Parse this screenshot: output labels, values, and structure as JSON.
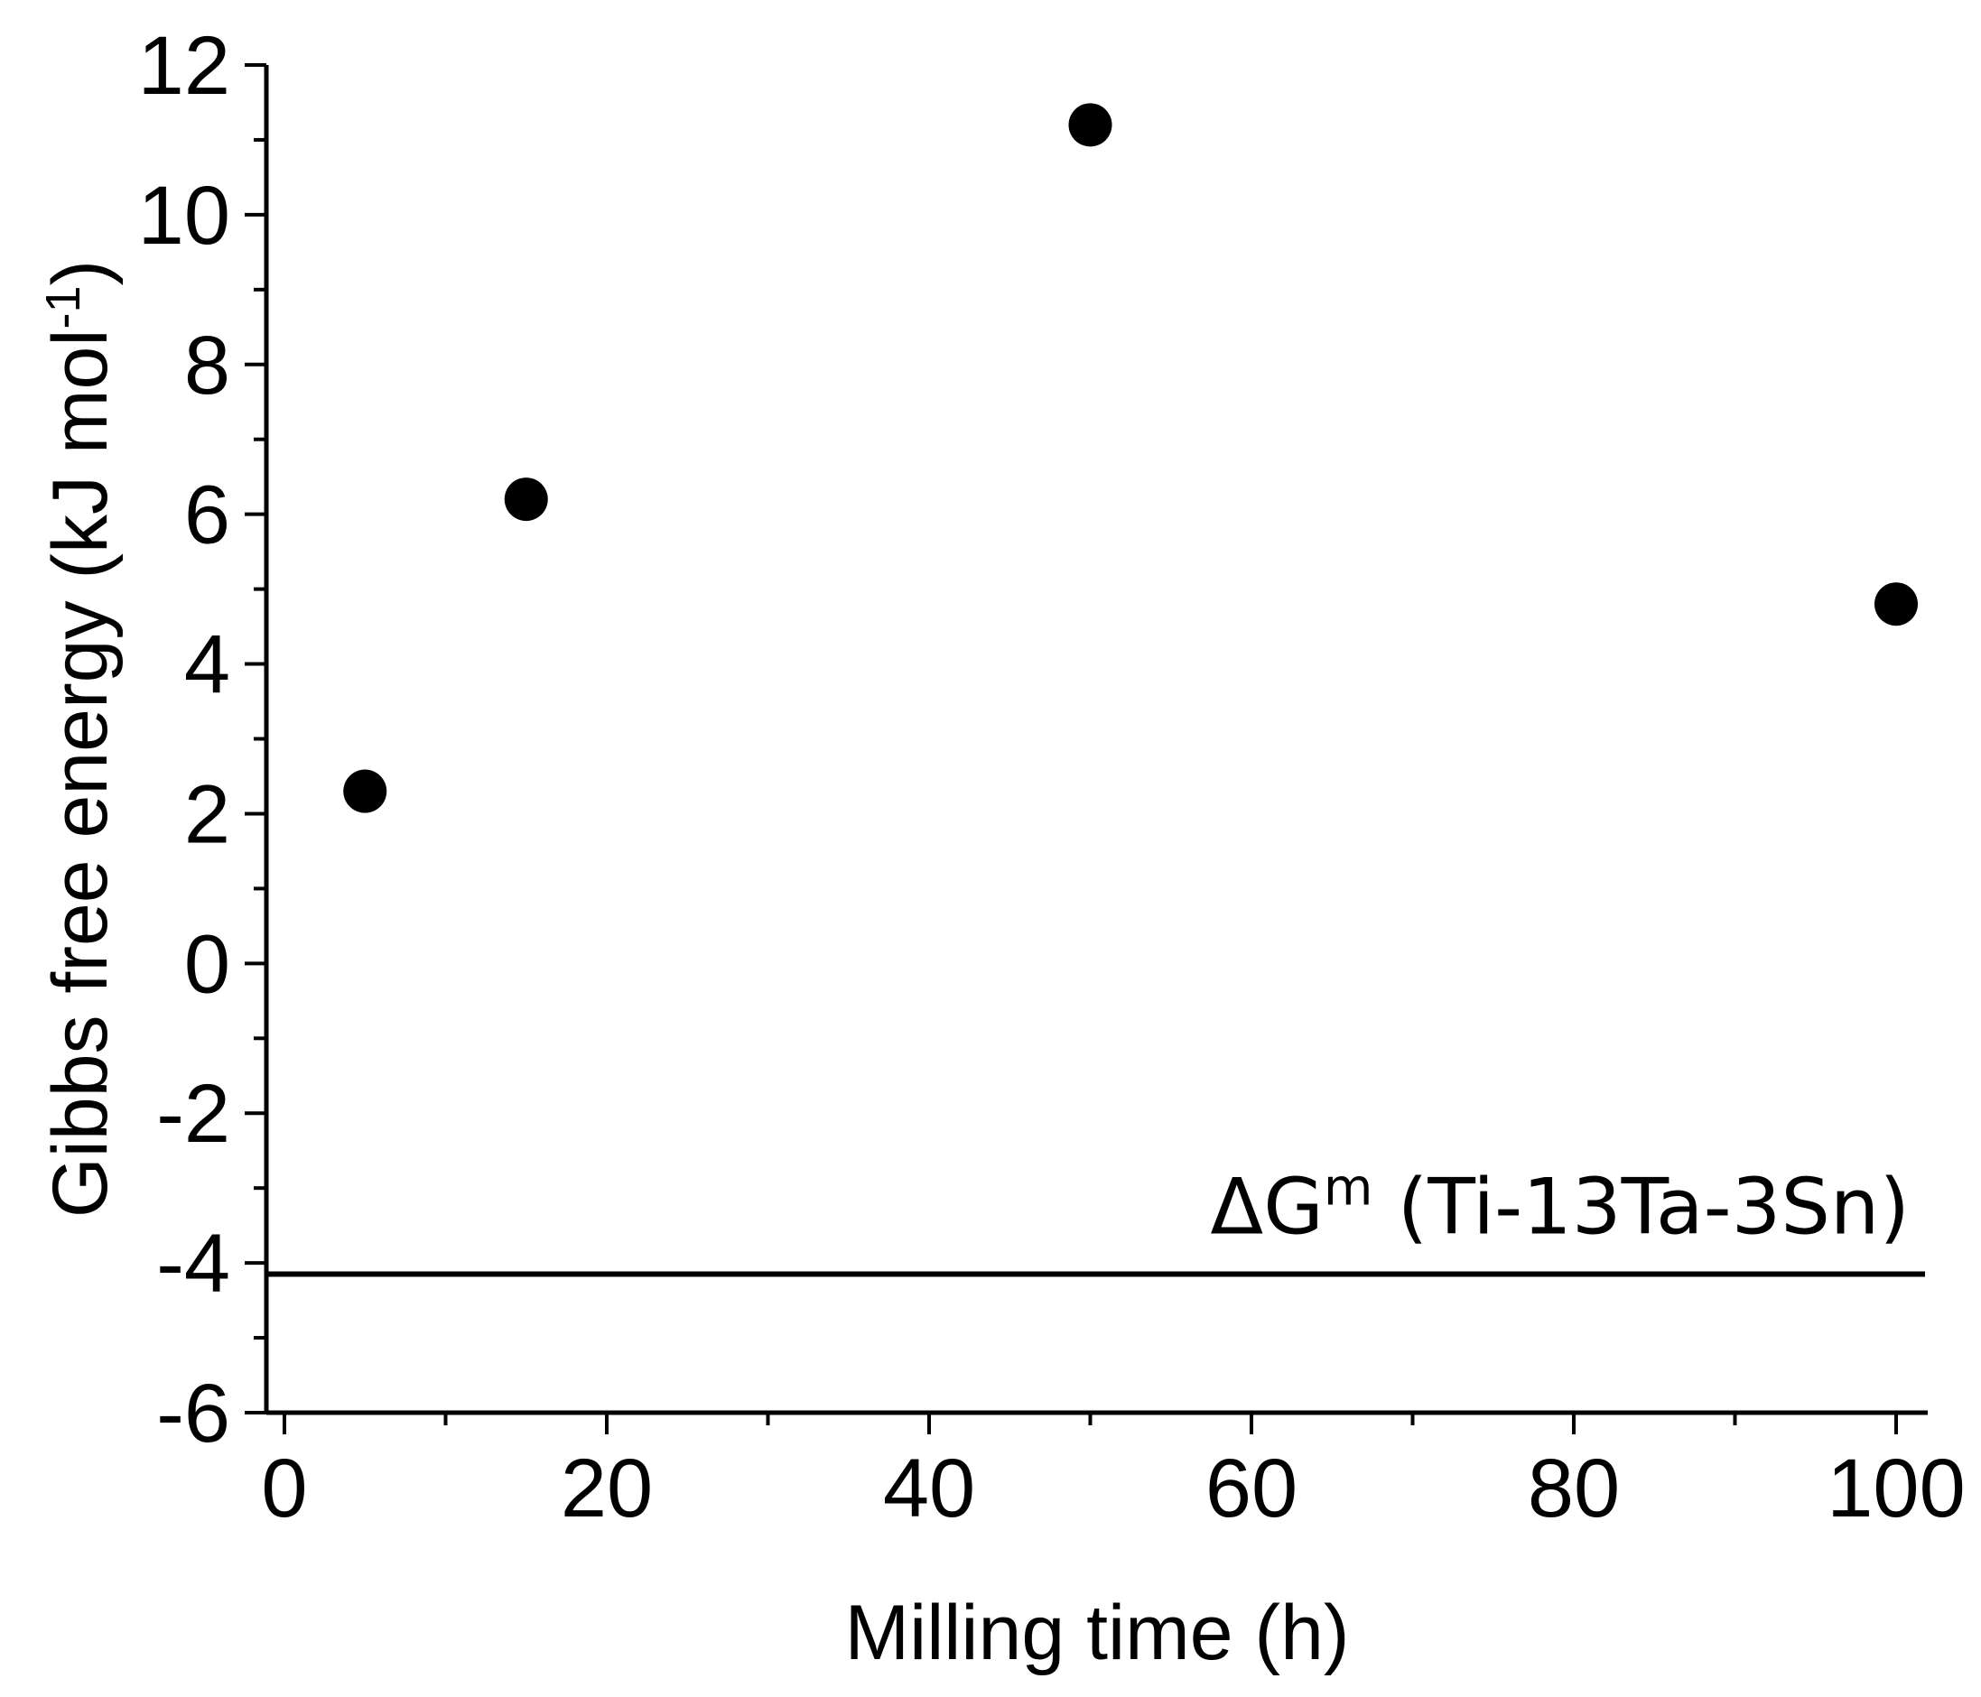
{
  "chart_data": {
    "type": "scatter",
    "title": "",
    "xlabel": "Milling time (h)",
    "ylabel": {
      "main": "Gibbs free energy   (kJ mol",
      "superscript": "-1",
      "close": ")"
    },
    "xlim": [
      -1,
      102
    ],
    "ylim": [
      -6,
      12
    ],
    "x_major_ticks": [
      0,
      20,
      40,
      60,
      80,
      100
    ],
    "x_minor_ticks": [
      10,
      30,
      50,
      70,
      90
    ],
    "y_major_ticks": [
      -6,
      -4,
      -2,
      0,
      2,
      4,
      6,
      8,
      10,
      12
    ],
    "y_minor_ticks": [
      -5,
      -3,
      -1,
      1,
      3,
      5,
      7,
      9,
      11
    ],
    "x_tick_labels": [
      "0",
      "20",
      "40",
      "60",
      "80",
      "100"
    ],
    "y_tick_labels": [
      "-6",
      "-4",
      "-2",
      "0",
      "2",
      "4",
      "6",
      "8",
      "10",
      "12"
    ],
    "series": [
      {
        "x": [
          5,
          15,
          50,
          100
        ],
        "y": [
          2.3,
          6.2,
          11.2,
          4.8
        ],
        "color": "#000000",
        "marker": "filled-circle"
      }
    ],
    "reference_line": {
      "y": -4.15,
      "label": {
        "delta": "ΔG",
        "superscript": "m",
        "rest": " (Ti-13Ta-3Sn)"
      },
      "color": "#000000"
    },
    "grid": false,
    "legend": "none"
  }
}
